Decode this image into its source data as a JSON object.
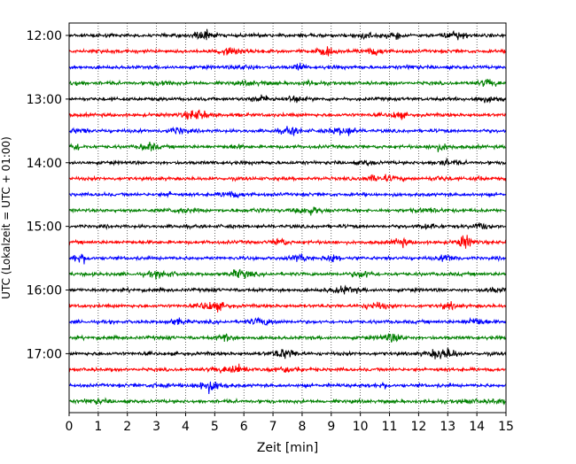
{
  "chart_data": {
    "type": "line",
    "title": "",
    "xlabel": "Zeit  [min]",
    "ylabel": "UTC (Lokalzeit = UTC + 01:00)",
    "xlim": [
      0,
      15
    ],
    "xticks": [
      "0",
      "1",
      "2",
      "3",
      "4",
      "5",
      "6",
      "7",
      "8",
      "9",
      "10",
      "11",
      "12",
      "13",
      "14",
      "15"
    ],
    "ytick_labels": [
      "12:00",
      "13:00",
      "14:00",
      "15:00",
      "16:00",
      "17:00"
    ],
    "grid": "vertical dotted at each minute",
    "line_colors": [
      "#000000",
      "#ff0000",
      "#0000ff",
      "#008000"
    ],
    "series": [
      {
        "start": "12:00",
        "color": "#000000"
      },
      {
        "start": "12:15",
        "color": "#ff0000"
      },
      {
        "start": "12:30",
        "color": "#0000ff"
      },
      {
        "start": "12:45",
        "color": "#008000"
      },
      {
        "start": "13:00",
        "color": "#000000"
      },
      {
        "start": "13:15",
        "color": "#ff0000"
      },
      {
        "start": "13:30",
        "color": "#0000ff"
      },
      {
        "start": "13:45",
        "color": "#008000"
      },
      {
        "start": "14:00",
        "color": "#000000"
      },
      {
        "start": "14:15",
        "color": "#ff0000"
      },
      {
        "start": "14:30",
        "color": "#0000ff"
      },
      {
        "start": "14:45",
        "color": "#008000"
      },
      {
        "start": "15:00",
        "color": "#000000"
      },
      {
        "start": "15:15",
        "color": "#ff0000"
      },
      {
        "start": "15:30",
        "color": "#0000ff"
      },
      {
        "start": "15:45",
        "color": "#008000"
      },
      {
        "start": "16:00",
        "color": "#000000"
      },
      {
        "start": "16:15",
        "color": "#ff0000"
      },
      {
        "start": "16:30",
        "color": "#0000ff"
      },
      {
        "start": "16:45",
        "color": "#008000"
      },
      {
        "start": "17:00",
        "color": "#000000"
      },
      {
        "start": "17:15",
        "color": "#ff0000"
      },
      {
        "start": "17:30",
        "color": "#0000ff"
      },
      {
        "start": "17:45",
        "color": "#008000"
      }
    ]
  }
}
